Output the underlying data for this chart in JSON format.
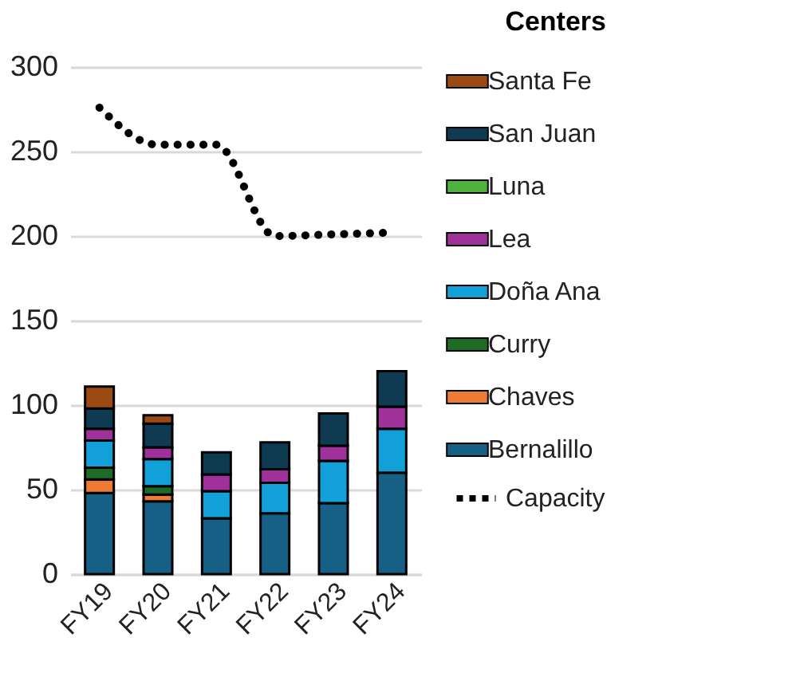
{
  "chart_data": {
    "type": "bar",
    "title": "Centers",
    "stacked": true,
    "categories": [
      "FY19",
      "FY20",
      "FY21",
      "FY22",
      "FY23",
      "FY24"
    ],
    "series": [
      {
        "name": "Bernalillo",
        "color": "#176085",
        "values": [
          48,
          43,
          33,
          36,
          42,
          60
        ]
      },
      {
        "name": "Chaves",
        "color": "#ee7b33",
        "values": [
          8,
          4,
          null,
          null,
          null,
          null
        ]
      },
      {
        "name": "Curry",
        "color": "#1e6b26",
        "values": [
          7,
          5,
          null,
          null,
          null,
          null
        ]
      },
      {
        "name": "Doña Ana",
        "color": "#12a0d8",
        "values": [
          16,
          16,
          16,
          18,
          25,
          26
        ]
      },
      {
        "name": "Lea",
        "color": "#a0319a",
        "values": [
          7,
          7,
          10,
          8,
          9,
          13
        ]
      },
      {
        "name": "Luna",
        "color": "#4db33d",
        "values": [
          null,
          null,
          null,
          null,
          null,
          null
        ]
      },
      {
        "name": "San Juan",
        "color": "#0e3a52",
        "values": [
          12,
          14,
          13,
          16,
          19,
          21
        ]
      },
      {
        "name": "Santa Fe",
        "color": "#9c4a14",
        "values": [
          13,
          5,
          null,
          null,
          null,
          null
        ]
      },
      {
        "name": "Capacity",
        "type": "line",
        "color": "#000000",
        "values": [
          276,
          254,
          254,
          200,
          201,
          202
        ]
      }
    ],
    "ylim": [
      0,
      300
    ],
    "yticks": [
      0,
      50,
      100,
      150,
      200,
      250,
      300
    ],
    "grid": "y",
    "legend": "right",
    "line_style": "dotted",
    "marker": "none"
  }
}
